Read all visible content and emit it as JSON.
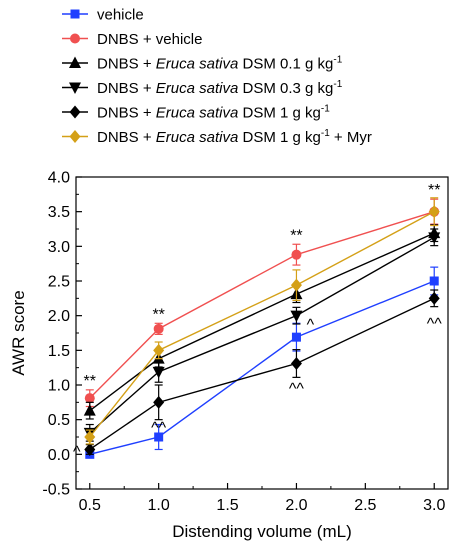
{
  "chart_data": {
    "type": "line",
    "xlabel": "Distending volume (mL)",
    "ylabel": "AWR score",
    "xlim": [
      0.4,
      3.1
    ],
    "ylim": [
      -0.5,
      4.0
    ],
    "xticks": [
      "0.5",
      "1.0",
      "1.5",
      "2.0",
      "2.5",
      "3.0"
    ],
    "yticks": [
      "-0.5",
      "0.0",
      "0.5",
      "1.0",
      "1.5",
      "2.0",
      "2.5",
      "3.0",
      "3.5",
      "4.0"
    ],
    "x": [
      0.5,
      1.0,
      2.0,
      3.0
    ],
    "legend_position": "top-left, above plot",
    "series": [
      {
        "name": "vehicle",
        "legend": [
          {
            "t": "vehicle"
          }
        ],
        "color": "#1f3fff",
        "marker": "square",
        "values": [
          0.0,
          0.25,
          1.69,
          2.5
        ],
        "errors": [
          0.0,
          0.18,
          0.2,
          0.2
        ]
      },
      {
        "name": "DNBS + vehicle",
        "legend": [
          {
            "t": "DNBS + vehicle"
          }
        ],
        "color": "#f05050",
        "marker": "circle",
        "values": [
          0.81,
          1.81,
          2.88,
          3.5
        ],
        "errors": [
          0.12,
          0.08,
          0.15,
          0.18
        ]
      },
      {
        "name": "DNBS + Eruca sativa DSM 0.1 g kg-1",
        "legend": [
          {
            "t": "DNBS + "
          },
          {
            "t": "Eruca sativa",
            "i": true
          },
          {
            "t": " DSM 0.1 g kg"
          },
          {
            "t": "-1",
            "sup": true
          }
        ],
        "color": "#000000",
        "marker": "triangle-up",
        "values": [
          0.63,
          1.38,
          2.31,
          3.19
        ],
        "errors": [
          0.12,
          0.12,
          0.12,
          0.12
        ]
      },
      {
        "name": "DNBS + Eruca sativa DSM 0.3 g kg-1",
        "legend": [
          {
            "t": "DNBS + "
          },
          {
            "t": "Eruca sativa",
            "i": true
          },
          {
            "t": " DSM 0.3 g kg"
          },
          {
            "t": "-1",
            "sup": true
          }
        ],
        "color": "#000000",
        "marker": "triangle-down",
        "values": [
          0.31,
          1.19,
          2.0,
          3.13
        ],
        "errors": [
          0.12,
          0.15,
          0.12,
          0.12
        ]
      },
      {
        "name": "DNBS + Eruca sativa DSM 1 g kg-1",
        "legend": [
          {
            "t": "DNBS + "
          },
          {
            "t": "Eruca sativa",
            "i": true
          },
          {
            "t": " DSM 1 g kg"
          },
          {
            "t": "-1",
            "sup": true
          }
        ],
        "color": "#000000",
        "marker": "diamond",
        "values": [
          0.07,
          0.75,
          1.31,
          2.25
        ],
        "errors": [
          0.07,
          0.25,
          0.2,
          0.12
        ]
      },
      {
        "name": "DNBS + Eruca sativa DSM 1 g kg-1 + Myr",
        "legend": [
          {
            "t": "DNBS + "
          },
          {
            "t": "Eruca sativa",
            "i": true
          },
          {
            "t": " DSM 1 g kg"
          },
          {
            "t": "-1",
            "sup": true
          },
          {
            "t": " + Myr"
          }
        ],
        "color": "#d4a017",
        "marker": "diamond",
        "values": [
          0.25,
          1.5,
          2.44,
          3.5
        ],
        "errors": [
          0.1,
          0.12,
          0.22,
          0.2
        ]
      }
    ],
    "annotations": [
      {
        "text": "**",
        "x": 0.5,
        "y": 0.93
      },
      {
        "text": "**",
        "x": 1.0,
        "y": 1.89
      },
      {
        "text": "**",
        "x": 2.0,
        "y": 3.03
      },
      {
        "text": "**",
        "x": 3.0,
        "y": 3.68
      },
      {
        "text": "^",
        "x": 0.5,
        "y": 0.0
      },
      {
        "text": "^^",
        "x": 1.0,
        "y": 0.75
      },
      {
        "text": "^",
        "x": 2.0,
        "y": 2.0
      },
      {
        "text": "^^",
        "x": 2.0,
        "y": 1.31
      },
      {
        "text": "^^",
        "x": 3.0,
        "y": 2.25
      }
    ]
  }
}
